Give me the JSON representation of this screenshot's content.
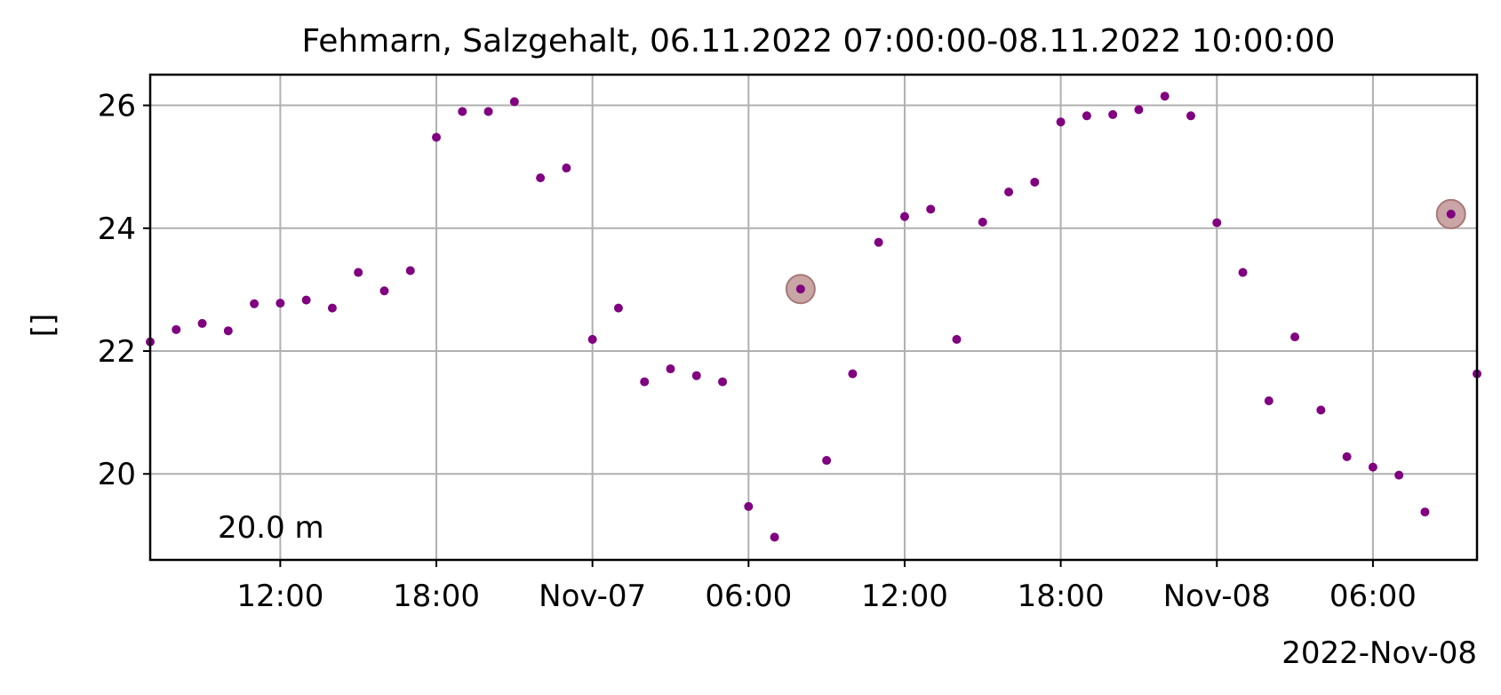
{
  "chart_data": {
    "type": "scatter",
    "title": "Fehmarn, Salzgehalt, 06.11.2022 07:00:00-08.11.2022 10:00:00",
    "ylabel": "[]",
    "xlabel": "",
    "x_offset_label": "2022-Nov-08",
    "annotation": "20.0 m",
    "grid": true,
    "marker_color": "#800080",
    "highlight_color": "#bc8f8f",
    "xlim": [
      "2022-11-06 07:00",
      "2022-11-08 10:00"
    ],
    "ylim": [
      18.6,
      26.5
    ],
    "x_ticks": [
      {
        "value": "2022-11-06 12:00",
        "label": "12:00"
      },
      {
        "value": "2022-11-06 18:00",
        "label": "18:00"
      },
      {
        "value": "2022-11-07 00:00",
        "label": "Nov-07"
      },
      {
        "value": "2022-11-07 06:00",
        "label": "06:00"
      },
      {
        "value": "2022-11-07 12:00",
        "label": "12:00"
      },
      {
        "value": "2022-11-07 18:00",
        "label": "18:00"
      },
      {
        "value": "2022-11-08 00:00",
        "label": "Nov-08"
      },
      {
        "value": "2022-11-08 06:00",
        "label": "06:00"
      }
    ],
    "y_ticks": [
      {
        "value": 20,
        "label": "20"
      },
      {
        "value": 22,
        "label": "22"
      },
      {
        "value": 24,
        "label": "24"
      },
      {
        "value": 26,
        "label": "26"
      }
    ],
    "points": [
      {
        "x": "2022-11-06 07:00",
        "y": 22.15
      },
      {
        "x": "2022-11-06 08:00",
        "y": 22.35
      },
      {
        "x": "2022-11-06 09:00",
        "y": 22.45
      },
      {
        "x": "2022-11-06 10:00",
        "y": 22.33
      },
      {
        "x": "2022-11-06 11:00",
        "y": 22.77
      },
      {
        "x": "2022-11-06 12:00",
        "y": 22.78
      },
      {
        "x": "2022-11-06 13:00",
        "y": 22.83
      },
      {
        "x": "2022-11-06 14:00",
        "y": 22.7
      },
      {
        "x": "2022-11-06 15:00",
        "y": 23.28
      },
      {
        "x": "2022-11-06 16:00",
        "y": 22.98
      },
      {
        "x": "2022-11-06 17:00",
        "y": 23.31
      },
      {
        "x": "2022-11-06 18:00",
        "y": 25.48
      },
      {
        "x": "2022-11-06 19:00",
        "y": 25.9
      },
      {
        "x": "2022-11-06 20:00",
        "y": 25.9
      },
      {
        "x": "2022-11-06 21:00",
        "y": 26.06
      },
      {
        "x": "2022-11-06 22:00",
        "y": 24.82
      },
      {
        "x": "2022-11-06 23:00",
        "y": 24.98
      },
      {
        "x": "2022-11-07 00:00",
        "y": 22.19
      },
      {
        "x": "2022-11-07 01:00",
        "y": 22.7
      },
      {
        "x": "2022-11-07 02:00",
        "y": 21.5
      },
      {
        "x": "2022-11-07 03:00",
        "y": 21.71
      },
      {
        "x": "2022-11-07 04:00",
        "y": 21.6
      },
      {
        "x": "2022-11-07 05:00",
        "y": 21.5
      },
      {
        "x": "2022-11-07 06:00",
        "y": 19.47
      },
      {
        "x": "2022-11-07 07:00",
        "y": 18.97
      },
      {
        "x": "2022-11-07 08:00",
        "y": 23.01,
        "highlight": true
      },
      {
        "x": "2022-11-07 09:00",
        "y": 20.22
      },
      {
        "x": "2022-11-07 10:00",
        "y": 21.63
      },
      {
        "x": "2022-11-07 11:00",
        "y": 23.77
      },
      {
        "x": "2022-11-07 12:00",
        "y": 24.19
      },
      {
        "x": "2022-11-07 13:00",
        "y": 24.31
      },
      {
        "x": "2022-11-07 14:00",
        "y": 22.19
      },
      {
        "x": "2022-11-07 15:00",
        "y": 24.1
      },
      {
        "x": "2022-11-07 16:00",
        "y": 24.59
      },
      {
        "x": "2022-11-07 17:00",
        "y": 24.75
      },
      {
        "x": "2022-11-07 18:00",
        "y": 25.73
      },
      {
        "x": "2022-11-07 19:00",
        "y": 25.83
      },
      {
        "x": "2022-11-07 20:00",
        "y": 25.85
      },
      {
        "x": "2022-11-07 21:00",
        "y": 25.93
      },
      {
        "x": "2022-11-07 22:00",
        "y": 26.15
      },
      {
        "x": "2022-11-07 23:00",
        "y": 25.83
      },
      {
        "x": "2022-11-08 00:00",
        "y": 24.09
      },
      {
        "x": "2022-11-08 01:00",
        "y": 23.28
      },
      {
        "x": "2022-11-08 02:00",
        "y": 21.19
      },
      {
        "x": "2022-11-08 03:00",
        "y": 22.23
      },
      {
        "x": "2022-11-08 04:00",
        "y": 21.04
      },
      {
        "x": "2022-11-08 05:00",
        "y": 20.28
      },
      {
        "x": "2022-11-08 06:00",
        "y": 20.11
      },
      {
        "x": "2022-11-08 07:00",
        "y": 19.98
      },
      {
        "x": "2022-11-08 08:00",
        "y": 19.38
      },
      {
        "x": "2022-11-08 09:00",
        "y": 24.23,
        "highlight": true
      },
      {
        "x": "2022-11-08 10:00",
        "y": 21.63
      }
    ]
  }
}
